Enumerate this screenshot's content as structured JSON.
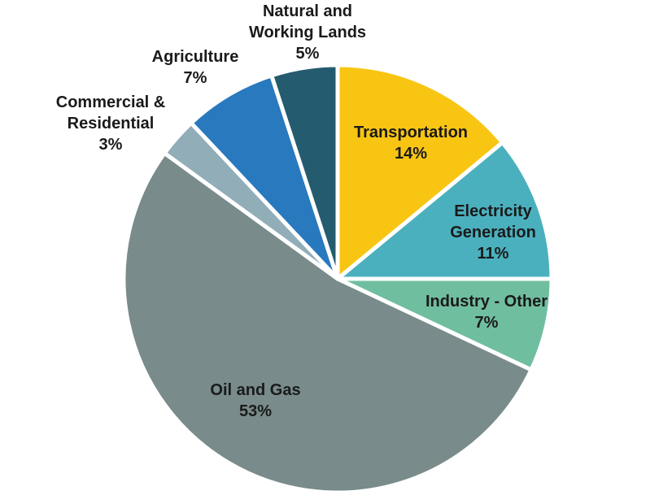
{
  "chart_data": {
    "type": "pie",
    "title": "",
    "unit": "%",
    "start_angle_deg": 0,
    "direction": "clockwise",
    "legend_position": "none",
    "background_color": "#FFFFFF",
    "slice_border_color": "#FFFFFF",
    "label_text_color": "#1A1A1A",
    "categories": [
      "Transportation",
      "Electricity Generation",
      "Industry - Other",
      "Oil and Gas",
      "Commercial & Residential",
      "Agriculture",
      "Natural and Working Lands"
    ],
    "values": [
      14,
      11,
      7,
      53,
      3,
      7,
      5
    ],
    "slices": [
      {
        "label": "Transportation",
        "value": 14,
        "pct_text": "14%",
        "color": "#F9C513",
        "label_placement": "inside",
        "label_lines": [
          "Transportation",
          "14%"
        ]
      },
      {
        "label": "Electricity Generation",
        "value": 11,
        "pct_text": "11%",
        "color": "#4BB0BE",
        "label_placement": "inside",
        "label_lines": [
          "Electricity",
          "Generation",
          "11%"
        ]
      },
      {
        "label": "Industry - Other",
        "value": 7,
        "pct_text": "7%",
        "color": "#70BEA0",
        "label_placement": "inside",
        "label_lines": [
          "Industry - Other",
          "7%"
        ]
      },
      {
        "label": "Oil and Gas",
        "value": 53,
        "pct_text": "53%",
        "color": "#798B8B",
        "label_placement": "inside",
        "label_lines": [
          "Oil and Gas",
          "53%"
        ]
      },
      {
        "label": "Commercial & Residential",
        "value": 3,
        "pct_text": "3%",
        "color": "#91ADB8",
        "label_placement": "outside",
        "label_lines": [
          "Commercial &",
          "Residential",
          "3%"
        ]
      },
      {
        "label": "Agriculture",
        "value": 7,
        "pct_text": "7%",
        "color": "#2979BE",
        "label_placement": "outside",
        "label_lines": [
          "Agriculture",
          "7%"
        ]
      },
      {
        "label": "Natural and Working Lands",
        "value": 5,
        "pct_text": "5%",
        "color": "#255B6E",
        "label_placement": "outside",
        "label_lines": [
          "Natural and",
          "Working Lands",
          "5%"
        ]
      }
    ]
  }
}
